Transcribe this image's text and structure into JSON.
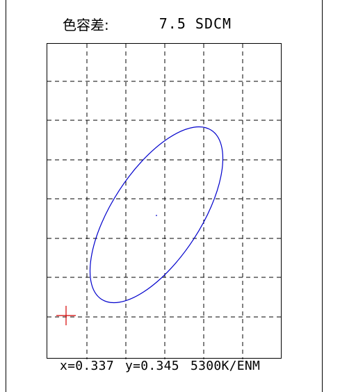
{
  "panel": {
    "title": {
      "label": "色容差:",
      "value": "7.5 SDCM"
    },
    "footer": {
      "x_text": "x=0.337",
      "y_text": "y=0.345",
      "cct_text": "5300K/ENM"
    }
  },
  "chart_data": {
    "type": "scatter",
    "title": "",
    "grid": true,
    "series": [
      {
        "name": "",
        "kind": "ellipse",
        "color": "#0000cc"
      },
      {
        "name": "",
        "kind": "center-point",
        "color": "#0000cc"
      },
      {
        "name": "",
        "kind": "measured-point-marker",
        "color": "#d40000"
      }
    ]
  }
}
